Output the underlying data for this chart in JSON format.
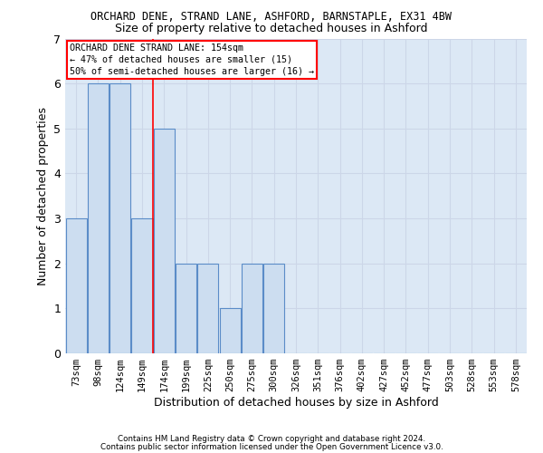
{
  "title": "ORCHARD DENE, STRAND LANE, ASHFORD, BARNSTAPLE, EX31 4BW",
  "subtitle": "Size of property relative to detached houses in Ashford",
  "xlabel": "Distribution of detached houses by size in Ashford",
  "ylabel": "Number of detached properties",
  "categories": [
    "73sqm",
    "98sqm",
    "124sqm",
    "149sqm",
    "174sqm",
    "199sqm",
    "225sqm",
    "250sqm",
    "275sqm",
    "300sqm",
    "326sqm",
    "351sqm",
    "376sqm",
    "402sqm",
    "427sqm",
    "452sqm",
    "477sqm",
    "503sqm",
    "528sqm",
    "553sqm",
    "578sqm"
  ],
  "bar_heights": [
    3,
    6,
    6,
    3,
    5,
    2,
    2,
    1,
    2,
    2,
    0,
    0,
    0,
    0,
    0,
    0,
    0,
    0,
    0,
    0,
    0
  ],
  "bar_color": "#ccddf0",
  "bar_edge_color": "#5b8cc8",
  "red_line_x": 3.5,
  "ylim": [
    0,
    7
  ],
  "yticks": [
    0,
    1,
    2,
    3,
    4,
    5,
    6,
    7
  ],
  "annotation_title": "ORCHARD DENE STRAND LANE: 154sqm",
  "annotation_line1": "← 47% of detached houses are smaller (15)",
  "annotation_line2": "50% of semi-detached houses are larger (16) →",
  "grid_color": "#ccd6e8",
  "bg_color": "#dce8f5",
  "footnote1": "Contains HM Land Registry data © Crown copyright and database right 2024.",
  "footnote2": "Contains public sector information licensed under the Open Government Licence v3.0.",
  "title_fontsize": 8.5,
  "subtitle_fontsize": 9,
  "tick_fontsize": 7.5,
  "ylabel_fontsize": 9,
  "xlabel_fontsize": 9
}
